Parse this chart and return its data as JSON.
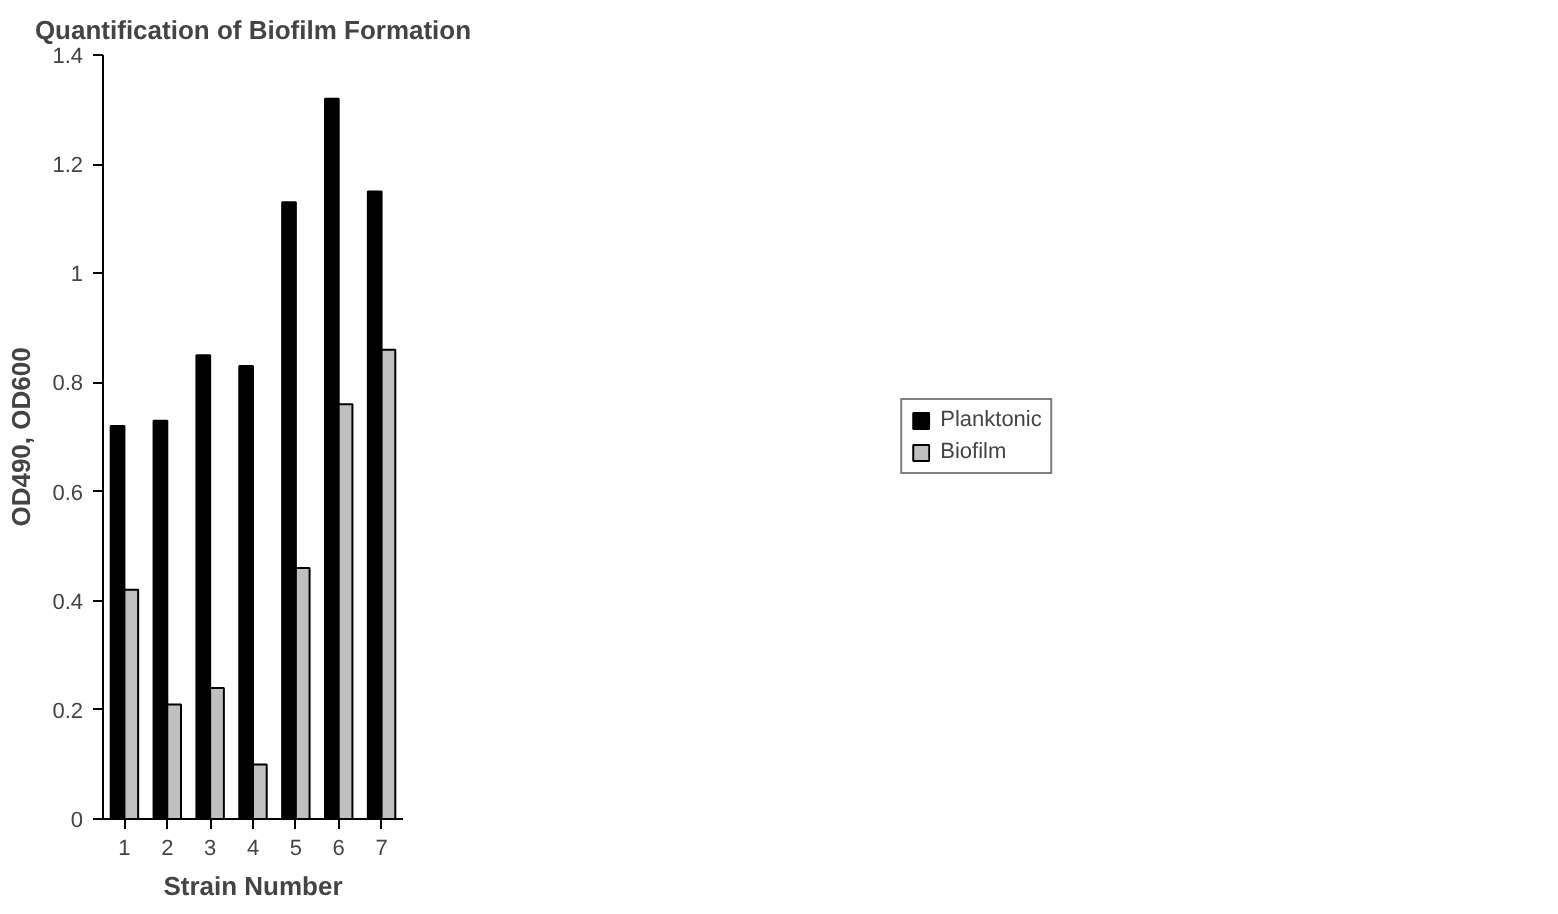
{
  "chart_data": {
    "type": "bar",
    "title": "Quantification of Biofilm Formation",
    "xlabel": "Strain Number",
    "ylabel": "OD490, OD600",
    "categories": [
      "1",
      "2",
      "3",
      "4",
      "5",
      "6",
      "7"
    ],
    "series": [
      {
        "name": "Planktonic",
        "color": "#000000",
        "values": [
          0.72,
          0.73,
          0.85,
          0.83,
          1.13,
          1.32,
          1.15
        ]
      },
      {
        "name": "Biofilm",
        "color": "#c0c0c0",
        "values": [
          0.42,
          0.21,
          0.24,
          0.1,
          0.46,
          0.76,
          0.86
        ]
      }
    ],
    "ylim": [
      0,
      1.4
    ],
    "yticks": [
      0,
      0.2,
      0.4,
      0.6,
      0.8,
      1,
      1.2,
      1.4
    ],
    "grid": false,
    "legend": "right"
  }
}
